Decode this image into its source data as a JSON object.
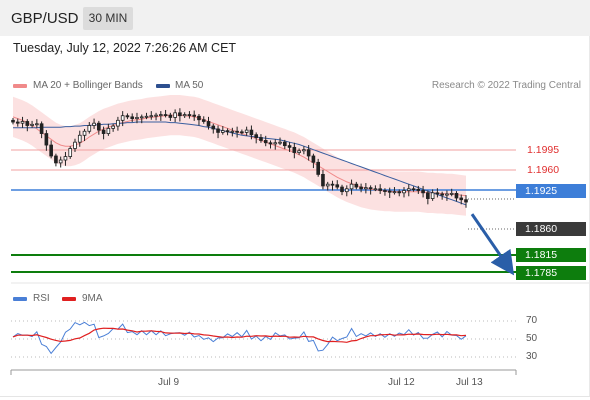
{
  "header": {
    "symbol": "GBP/USD",
    "timeframe": "30 MIN"
  },
  "datetime": "Tuesday, July 12, 2022 7:26:26 AM CET",
  "legend": [
    {
      "label": "MA 20 + Bollinger Bands",
      "color": "#f08a8a"
    },
    {
      "label": "MA 50",
      "color": "#2d4f8f"
    }
  ],
  "credit": "Research © 2022 Trading Central",
  "levels": {
    "r2": "1.1995",
    "r1": "1.1960",
    "pivot": "1.1925",
    "last": "1.1860",
    "s1": "1.1815",
    "s2": "1.1785"
  },
  "rsi_legend": [
    {
      "label": "RSI",
      "color": "#4a7fd6"
    },
    {
      "label": "9MA",
      "color": "#e02020"
    }
  ],
  "rsi_levels": [
    "70",
    "50",
    "30"
  ],
  "x_axis": [
    "Jul 9",
    "Jul 12",
    "Jul 13"
  ],
  "colors": {
    "pivot": "#3d7ed8",
    "support": "#0d7d0d",
    "resistance": "#e03030",
    "bull": "#ffffff",
    "bear": "#222222"
  },
  "chart_data": {
    "type": "candlestick",
    "title": "GBP/USD",
    "timeframe": "30 MIN",
    "y_unit": "price",
    "ylim": [
      1.174,
      1.2065
    ],
    "closes": [
      1.2018,
      1.2016,
      1.2019,
      1.2012,
      1.2014,
      1.2015,
      1.1998,
      1.1978,
      1.1959,
      1.1947,
      1.1952,
      1.1958,
      1.1972,
      1.1983,
      1.1995,
      1.2002,
      1.2012,
      1.2016,
      1.2004,
      1.1998,
      1.2007,
      1.2011,
      1.2021,
      1.2029,
      1.2027,
      1.2024,
      1.2026,
      1.2027,
      1.2028,
      1.2029,
      1.203,
      1.2031,
      1.203,
      1.2026,
      1.2034,
      1.2029,
      1.2031,
      1.203,
      1.2028,
      1.2022,
      1.2019,
      1.2011,
      1.2006,
      1.2,
      1.2003,
      1.2001,
      1.2002,
      1.2001,
      1.2,
      1.2004,
      1.1996,
      1.1991,
      1.1986,
      1.1982,
      1.198,
      1.1982,
      1.1983,
      1.1977,
      1.1974,
      1.1965,
      1.1968,
      1.197,
      1.1959,
      1.1948,
      1.1927,
      1.1907,
      1.191,
      1.1909,
      1.1905,
      1.1897,
      1.1902,
      1.191,
      1.1905,
      1.1902,
      1.1904,
      1.1902,
      1.1902,
      1.1899,
      1.1898,
      1.1896,
      1.1897,
      1.1895,
      1.1899,
      1.1902,
      1.1901,
      1.1899,
      1.1895,
      1.1885,
      1.1895,
      1.1893,
      1.1891,
      1.1893,
      1.1894,
      1.1886,
      1.1883,
      1.1879
    ],
    "ma20": [
      1.2027,
      1.2024,
      1.2021,
      1.2017,
      1.2012,
      1.2006,
      1.2,
      1.1994,
      1.1988,
      1.1982,
      1.1978,
      1.1976,
      1.1976,
      1.1978,
      1.1981,
      1.1986,
      1.1992,
      1.1997,
      1.2002,
      1.2006,
      1.2009,
      1.2012,
      1.2015,
      1.2017,
      1.2019,
      1.2021,
      1.2022,
      1.2023,
      1.2025,
      1.2026,
      1.2027,
      1.2028,
      1.2029,
      1.203,
      1.203,
      1.203,
      1.2029,
      1.2028,
      1.2027,
      1.2025,
      1.2022,
      1.2019,
      1.2016,
      1.2013,
      1.201,
      1.2007,
      1.2004,
      1.2001,
      1.1998,
      1.1995,
      1.1992,
      1.1989,
      1.1986,
      1.1983,
      1.198,
      1.1977,
      1.1974,
      1.1971,
      1.1968,
      1.1965,
      1.1961,
      1.1957,
      1.1952,
      1.1947,
      1.1942,
      1.1937,
      1.1932,
      1.1927,
      1.1922,
      1.1918,
      1.1914,
      1.1911,
      1.1908,
      1.1905,
      1.1903,
      1.1901,
      1.19,
      1.1899,
      1.1898,
      1.1898,
      1.1897,
      1.1897,
      1.1897,
      1.1897,
      1.1897,
      1.1897,
      1.1896,
      1.1895,
      1.1895,
      1.1894,
      1.1894,
      1.1893,
      1.1893,
      1.1892,
      1.1891,
      1.189
    ],
    "ma50": [
      1.2008,
      1.2008,
      1.2008,
      1.2008,
      1.2008,
      1.2008,
      1.2009,
      1.2009,
      1.2009,
      1.2009,
      1.2009,
      1.201,
      1.201,
      1.2011,
      1.2011,
      1.2012,
      1.2012,
      1.2013,
      1.2013,
      1.2014,
      1.2014,
      1.2015,
      1.2016,
      1.2016,
      1.2017,
      1.2017,
      1.2018,
      1.2018,
      1.2018,
      1.2018,
      1.2018,
      1.2018,
      1.2018,
      1.2017,
      1.2017,
      1.2016,
      1.2015,
      1.2014,
      1.2013,
      1.2012,
      1.201,
      1.2009,
      1.2007,
      1.2005,
      1.2003,
      1.2001,
      1.1999,
      1.1997,
      1.1995,
      1.1994,
      1.1993,
      1.1992,
      1.1991,
      1.199,
      1.1989,
      1.1988,
      1.1987,
      1.1985,
      1.1983,
      1.1981,
      1.1979,
      1.1976,
      1.1973,
      1.197,
      1.1967,
      1.1964,
      1.1961,
      1.1958,
      1.1955,
      1.1952,
      1.1949,
      1.1946,
      1.1943,
      1.194,
      1.1937,
      1.1934,
      1.1931,
      1.1928,
      1.1925,
      1.1922,
      1.1919,
      1.1916,
      1.1913,
      1.191,
      1.1907,
      1.1904,
      1.1901,
      1.1898,
      1.1895,
      1.1892,
      1.1889,
      1.1886,
      1.1883,
      1.188,
      1.1877,
      1.1874
    ],
    "bb_width": 0.0035,
    "projection": {
      "from": 1.1858,
      "to": 1.1785
    },
    "rsi": {
      "ylim": [
        10,
        80
      ],
      "levels": [
        70,
        50,
        30
      ]
    }
  }
}
